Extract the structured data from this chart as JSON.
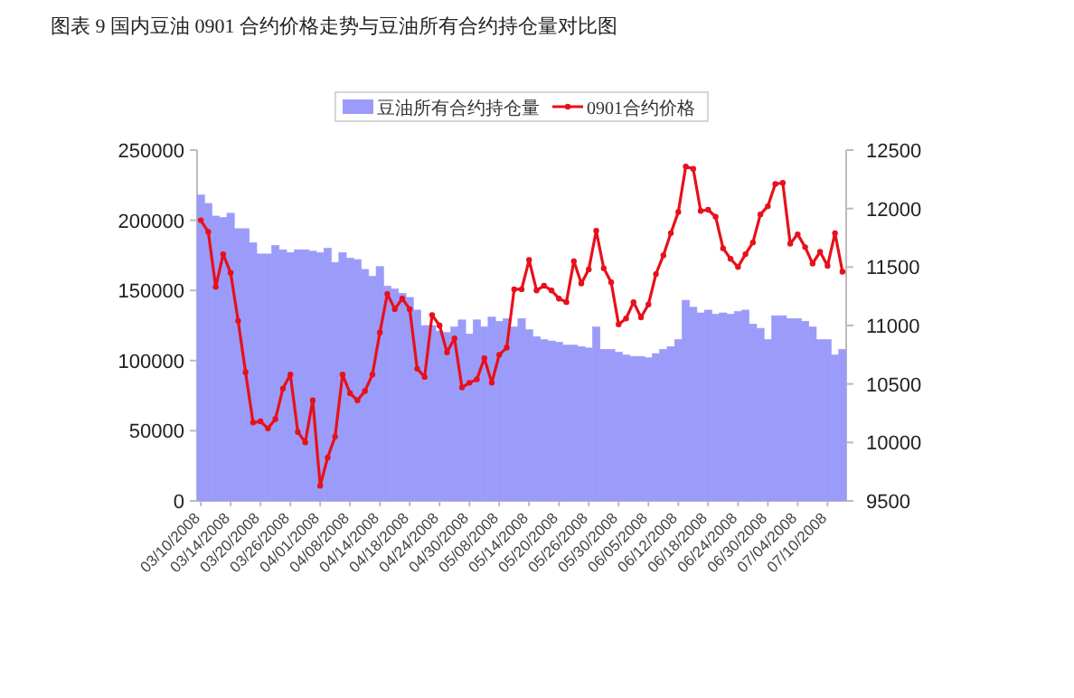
{
  "chart_data": {
    "type": "bar",
    "title": "图表 9  国内豆油 0901 合约价格走势与豆油所有合约持仓量对比图",
    "categories": [
      "03/10/2008",
      null,
      null,
      null,
      "03/14/2008",
      null,
      null,
      null,
      "03/20/2008",
      null,
      null,
      null,
      "03/26/2008",
      null,
      null,
      null,
      "04/01/2008",
      null,
      null,
      null,
      "04/08/2008",
      null,
      null,
      null,
      "04/14/2008",
      null,
      null,
      null,
      "04/18/2008",
      null,
      null,
      null,
      "04/24/2008",
      null,
      null,
      null,
      "04/30/2008",
      null,
      null,
      null,
      "05/08/2008",
      null,
      null,
      null,
      "05/14/2008",
      null,
      null,
      null,
      "05/20/2008",
      null,
      null,
      null,
      "05/26/2008",
      null,
      null,
      null,
      "05/30/2008",
      null,
      null,
      null,
      "06/05/2008",
      null,
      null,
      null,
      "06/12/2008",
      null,
      null,
      null,
      "06/18/2008",
      null,
      null,
      null,
      "06/24/2008",
      null,
      null,
      null,
      "06/30/2008",
      null,
      null,
      null,
      "07/04/2008",
      null,
      null,
      null,
      "07/10/2008",
      null,
      null
    ],
    "series": [
      {
        "name": "豆油所有合约持仓量",
        "color": "#9b9bfa",
        "values": [
          218000,
          212000,
          203000,
          202000,
          205000,
          194000,
          194000,
          184000,
          176000,
          176000,
          182000,
          179000,
          177000,
          179000,
          179000,
          178000,
          177000,
          180000,
          170000,
          177000,
          173000,
          172000,
          165000,
          160000,
          167000,
          153000,
          151000,
          148000,
          145000,
          136000,
          125000,
          125000,
          121000,
          120000,
          124000,
          129000,
          119000,
          129000,
          124000,
          131000,
          128000,
          130000,
          124000,
          130000,
          122000,
          117000,
          115000,
          114000,
          113000,
          111000,
          111000,
          110000,
          109000,
          124000,
          108000,
          108000,
          106000,
          104000,
          103000,
          103000,
          102000,
          105000,
          108000,
          110000,
          115000,
          143000,
          138000,
          134000,
          136000,
          133000,
          134000,
          133000,
          135000,
          136000,
          126000,
          123000,
          115000,
          132000,
          132000,
          130000,
          130000,
          128000,
          124000,
          115000,
          115000,
          104000,
          108000
        ]
      },
      {
        "name": "0901合约价格",
        "type": "line",
        "axis": "y2",
        "color": "#e8101a",
        "values": [
          11900,
          11800,
          11330,
          11610,
          11450,
          11040,
          10600,
          10170,
          10180,
          10120,
          10200,
          10460,
          10580,
          10090,
          10000,
          10360,
          9630,
          9870,
          10050,
          10580,
          10420,
          10360,
          10440,
          10580,
          10940,
          11270,
          11140,
          11230,
          11140,
          10630,
          10560,
          11090,
          11000,
          10770,
          10890,
          10470,
          10510,
          10540,
          10720,
          10510,
          10750,
          10810,
          11310,
          11310,
          11560,
          11300,
          11340,
          11300,
          11230,
          11200,
          11550,
          11360,
          11480,
          11810,
          11490,
          11370,
          11010,
          11060,
          11200,
          11070,
          11180,
          11440,
          11600,
          11790,
          11970,
          12360,
          12340,
          11980,
          11990,
          11930,
          11660,
          11570,
          11500,
          11610,
          11710,
          11950,
          12020,
          12210,
          12220,
          11700,
          11780,
          11670,
          11530,
          11630,
          11510,
          11790,
          11460
        ]
      }
    ],
    "ylim": [
      0,
      250000
    ],
    "yticks": [
      0,
      50000,
      100000,
      150000,
      200000,
      250000
    ],
    "y2lim": [
      9500,
      12500
    ],
    "y2ticks": [
      9500,
      10000,
      10500,
      11000,
      11500,
      12000,
      12500
    ],
    "legend": "top",
    "marker": "circle"
  }
}
